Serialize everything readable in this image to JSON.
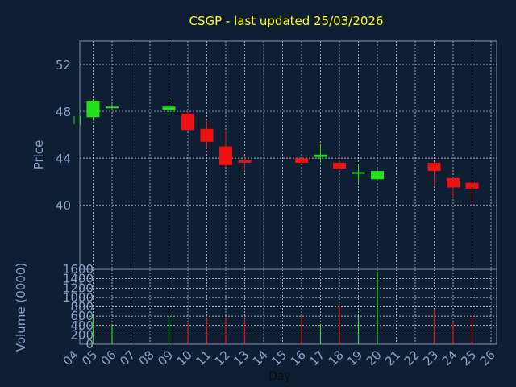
{
  "chart_data": {
    "type": "candlestick",
    "title": "CSGP - last updated 25/03/2026",
    "xlabel": "Day",
    "price_panel": {
      "ylabel": "Price",
      "ylim": [
        34.5,
        54
      ],
      "yticks": [
        40,
        44,
        48,
        52
      ]
    },
    "volume_panel": {
      "ylabel": "Volume (0000)",
      "ylim": [
        0,
        1600
      ],
      "yticks": [
        0,
        200,
        400,
        600,
        800,
        1000,
        1200,
        1400,
        1600
      ]
    },
    "x_ticks": [
      "04",
      "05",
      "06",
      "07",
      "08",
      "09",
      "10",
      "11",
      "12",
      "13",
      "14",
      "15",
      "16",
      "17",
      "18",
      "19",
      "20",
      "21",
      "22",
      "23",
      "24",
      "25",
      "26"
    ],
    "candles": [
      {
        "day": "04",
        "open": 46.9,
        "close": 47.6,
        "high": 47.6,
        "low": 46.9,
        "volume": 0
      },
      {
        "day": "05",
        "open": 47.5,
        "close": 48.9,
        "high": 49.0,
        "low": 47.2,
        "volume": 600
      },
      {
        "day": "06",
        "open": 48.3,
        "close": 48.4,
        "high": 48.6,
        "low": 48.2,
        "volume": 400
      },
      {
        "day": "09",
        "open": 48.1,
        "close": 48.4,
        "high": 48.9,
        "low": 47.6,
        "volume": 580
      },
      {
        "day": "10",
        "open": 47.8,
        "close": 46.4,
        "high": 48.0,
        "low": 46.3,
        "volume": 450
      },
      {
        "day": "11",
        "open": 46.5,
        "close": 45.4,
        "high": 47.2,
        "low": 44.8,
        "volume": 560
      },
      {
        "day": "12",
        "open": 45.0,
        "close": 43.4,
        "high": 46.3,
        "low": 43.3,
        "volume": 600
      },
      {
        "day": "13",
        "open": 43.8,
        "close": 43.6,
        "high": 44.2,
        "low": 42.9,
        "volume": 550
      },
      {
        "day": "16",
        "open": 44.0,
        "close": 43.6,
        "high": 44.0,
        "low": 43.5,
        "volume": 600
      },
      {
        "day": "17",
        "open": 44.1,
        "close": 44.3,
        "high": 45.2,
        "low": 43.6,
        "volume": 420
      },
      {
        "day": "18",
        "open": 43.6,
        "close": 43.1,
        "high": 43.8,
        "low": 42.9,
        "volume": 850
      },
      {
        "day": "19",
        "open": 42.7,
        "close": 42.8,
        "high": 43.5,
        "low": 41.8,
        "volume": 600
      },
      {
        "day": "20",
        "open": 42.2,
        "close": 42.9,
        "high": 43.1,
        "low": 42.1,
        "volume": 1550
      },
      {
        "day": "23",
        "open": 43.6,
        "close": 42.9,
        "high": 43.6,
        "low": 41.7,
        "volume": 750
      },
      {
        "day": "24",
        "open": 42.3,
        "close": 41.5,
        "high": 42.4,
        "low": 40.6,
        "volume": 480
      },
      {
        "day": "25",
        "open": 41.9,
        "close": 41.4,
        "high": 42.1,
        "low": 40.3,
        "volume": 580
      }
    ],
    "grid": true,
    "colors": {
      "background": "#0f1f33",
      "up": "#22e11a",
      "down": "#ee1111",
      "title": "#ffff00",
      "axis_text": "#8aa2c7",
      "frame": "#7f8fa6",
      "grid": "#d9dee6"
    }
  }
}
